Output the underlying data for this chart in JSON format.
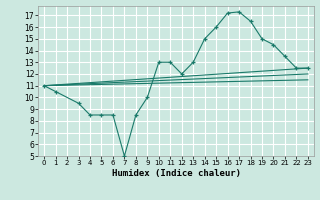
{
  "xlabel": "Humidex (Indice chaleur)",
  "bg_color": "#cce8e0",
  "grid_color": "#ffffff",
  "line_color": "#1a7a6a",
  "xlim": [
    -0.5,
    23.5
  ],
  "ylim": [
    5,
    17.8
  ],
  "yticks": [
    5,
    6,
    7,
    8,
    9,
    10,
    11,
    12,
    13,
    14,
    15,
    16,
    17
  ],
  "xticks": [
    0,
    1,
    2,
    3,
    4,
    5,
    6,
    7,
    8,
    9,
    10,
    11,
    12,
    13,
    14,
    15,
    16,
    17,
    18,
    19,
    20,
    21,
    22,
    23
  ],
  "curve_x": [
    0,
    1,
    3,
    4,
    5,
    6,
    7,
    8,
    9,
    10,
    11,
    12,
    13,
    14,
    15,
    16,
    17,
    18,
    19,
    20,
    21,
    22,
    23
  ],
  "curve_y": [
    11.0,
    10.5,
    9.5,
    8.5,
    8.5,
    8.5,
    5.0,
    8.5,
    10.0,
    13.0,
    13.0,
    12.0,
    13.0,
    15.0,
    16.0,
    17.2,
    17.3,
    16.5,
    15.0,
    14.5,
    13.5,
    12.5,
    12.5
  ],
  "line1_x": [
    0,
    23
  ],
  "line1_y": [
    11.0,
    12.5
  ],
  "line2_x": [
    0,
    23
  ],
  "line2_y": [
    11.0,
    12.0
  ],
  "line3_x": [
    0,
    23
  ],
  "line3_y": [
    11.0,
    11.5
  ]
}
